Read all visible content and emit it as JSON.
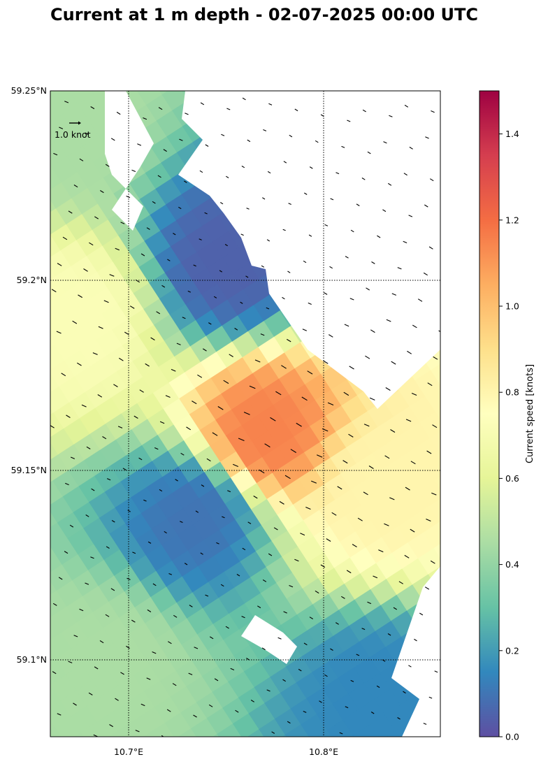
{
  "chart_data": {
    "type": "heatmap",
    "title": "Current at 1 m depth - 02-07-2025 00:00 UTC",
    "map_extent": {
      "lon": [
        10.66,
        10.86
      ],
      "lat": [
        59.08,
        59.25
      ]
    },
    "grid_x_ticks": [
      {
        "value": 10.7,
        "label": "10.7°E"
      },
      {
        "value": 10.8,
        "label": "10.8°E"
      }
    ],
    "grid_y_ticks": [
      {
        "value": 59.1,
        "label": "59.1°N"
      },
      {
        "value": 59.15,
        "label": "59.15°N"
      },
      {
        "value": 59.2,
        "label": "59.2°N"
      },
      {
        "value": 59.25,
        "label": "59.25°N"
      }
    ],
    "grid_lines": "dotted",
    "quiver_key": {
      "label": "1.0 knot",
      "value": 1.0
    },
    "colorbar": {
      "label": "Current speed [knots]",
      "range": [
        0,
        1.5
      ],
      "ticks": [
        "0.0",
        "0.2",
        "0.4",
        "0.6",
        "0.8",
        "1.0",
        "1.2",
        "1.4"
      ],
      "colormap": "Spectral_r",
      "placement": "right"
    },
    "speed_field_knots": [
      {
        "region": "north-east shore strip",
        "speed": 0.05
      },
      {
        "region": "north-west corner",
        "speed": 0.45
      },
      {
        "region": "west coast band near 59.2°N",
        "speed": 0.72
      },
      {
        "region": "jet core near 10.77°E 59.16°N",
        "speed": 1.15
      },
      {
        "region": "east of jet core near 10.83°E 59.15°N",
        "speed": 0.8
      },
      {
        "region": "eddy near 10.73°E 59.14°N",
        "speed": 0.1
      },
      {
        "region": "south-west area near 59.1°N",
        "speed": 0.45
      },
      {
        "region": "south-east shore strip",
        "speed": 0.15
      }
    ]
  }
}
